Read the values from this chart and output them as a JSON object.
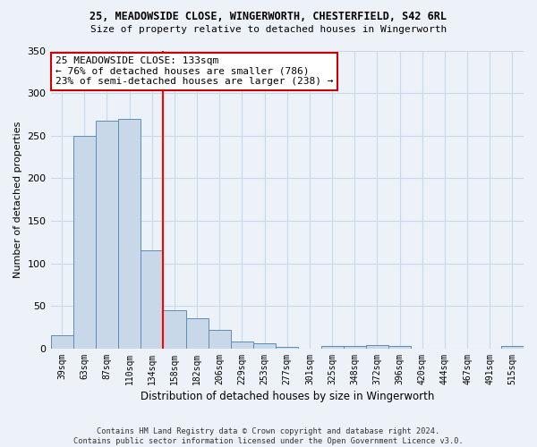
{
  "title_line1": "25, MEADOWSIDE CLOSE, WINGERWORTH, CHESTERFIELD, S42 6RL",
  "title_line2": "Size of property relative to detached houses in Wingerworth",
  "xlabel": "Distribution of detached houses by size in Wingerworth",
  "ylabel": "Number of detached properties",
  "categories": [
    "39sqm",
    "63sqm",
    "87sqm",
    "110sqm",
    "134sqm",
    "158sqm",
    "182sqm",
    "206sqm",
    "229sqm",
    "253sqm",
    "277sqm",
    "301sqm",
    "325sqm",
    "348sqm",
    "372sqm",
    "396sqm",
    "420sqm",
    "444sqm",
    "467sqm",
    "491sqm",
    "515sqm"
  ],
  "values": [
    16,
    250,
    268,
    270,
    115,
    45,
    36,
    22,
    8,
    6,
    2,
    0,
    3,
    3,
    4,
    3,
    0,
    0,
    0,
    0,
    3
  ],
  "bar_color": "#c8d8e8",
  "bar_edge_color": "#5b8db8",
  "grid_color": "#c8d8e8",
  "bg_color": "#edf2f8",
  "red_line_x": 4.5,
  "annotation_text": "25 MEADOWSIDE CLOSE: 133sqm\n← 76% of detached houses are smaller (786)\n23% of semi-detached houses are larger (238) →",
  "annotation_box_color": "#ffffff",
  "annotation_box_edge": "#cc0000",
  "footer_line1": "Contains HM Land Registry data © Crown copyright and database right 2024.",
  "footer_line2": "Contains public sector information licensed under the Open Government Licence v3.0.",
  "ylim": [
    0,
    350
  ],
  "yticks": [
    0,
    50,
    100,
    150,
    200,
    250,
    300,
    350
  ]
}
